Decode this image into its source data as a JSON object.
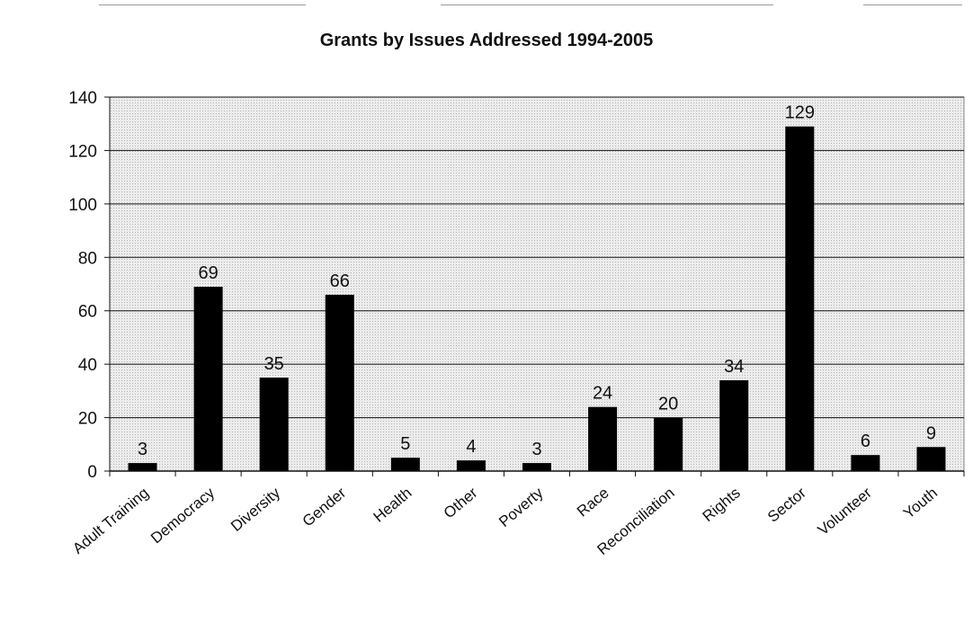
{
  "chart_data": {
    "type": "bar",
    "title": "Grants by Issues Addressed 1994-2005",
    "xlabel": "",
    "ylabel": "",
    "categories": [
      "Adult Training",
      "Democracy",
      "Diversity",
      "Gender",
      "Health",
      "Other",
      "Poverty",
      "Race",
      "Reconciliation",
      "Rights",
      "Sector",
      "Volunteer",
      "Youth"
    ],
    "values": [
      3,
      69,
      35,
      66,
      5,
      4,
      3,
      24,
      20,
      34,
      129,
      6,
      9
    ],
    "ylim": [
      0,
      140
    ],
    "yticks": [
      0,
      20,
      40,
      60,
      80,
      100,
      120,
      140
    ],
    "grid": true,
    "legend": "none",
    "data_labels": true,
    "bar_color": "#000000",
    "plot_background": "#e6e6e6"
  }
}
